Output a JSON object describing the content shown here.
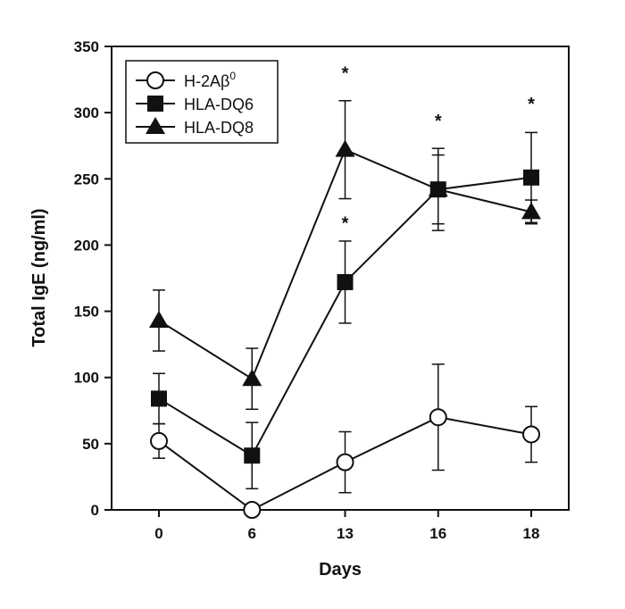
{
  "chart_data": {
    "type": "line",
    "title": "",
    "xlabel": "Days",
    "ylabel": "Total IgE (ng/ml)",
    "categories": [
      "0",
      "6",
      "13",
      "16",
      "18"
    ],
    "ylim": [
      0,
      350
    ],
    "yticks": [
      0,
      50,
      100,
      150,
      200,
      250,
      300,
      350
    ],
    "grid": false,
    "legend_placement": "top-left",
    "series": [
      {
        "name": "H-2Aβ",
        "name_sup": "0",
        "marker": "open-circle",
        "values": [
          52,
          0,
          36,
          70,
          57
        ],
        "errors": [
          13,
          0,
          23,
          40,
          21
        ]
      },
      {
        "name": "HLA-DQ6",
        "marker": "filled-square",
        "values": [
          84,
          41,
          172,
          242,
          251
        ],
        "errors": [
          19,
          25,
          31,
          26,
          34
        ]
      },
      {
        "name": "HLA-DQ8",
        "marker": "filled-triangle",
        "values": [
          143,
          99,
          272,
          242,
          225
        ],
        "errors": [
          23,
          23,
          37,
          31,
          9
        ]
      }
    ],
    "annotations": [
      {
        "text": "*",
        "x": "13",
        "y": 332
      },
      {
        "text": "*",
        "x": "13",
        "y": 219
      },
      {
        "text": "*",
        "x": "16",
        "y": 296
      },
      {
        "text": "*",
        "x": "18",
        "y": 309
      }
    ],
    "colors": {
      "line": "#111111",
      "marker_fill": "#111111",
      "open_fill": "#ffffff"
    }
  }
}
